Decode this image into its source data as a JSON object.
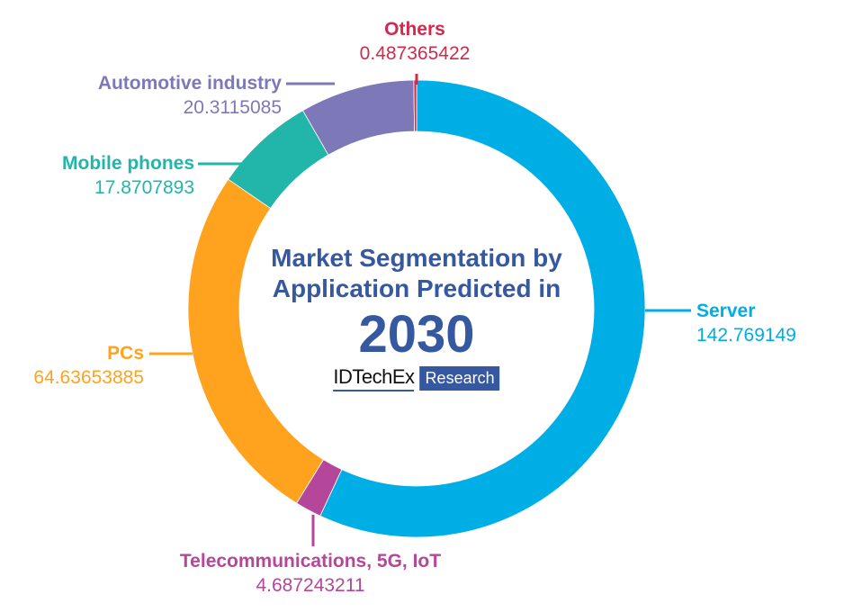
{
  "chart_data": {
    "type": "pie",
    "subtype": "donut",
    "title": "Market Segmentation by Application Predicted in 2030",
    "title_lines": [
      "Market Segmentation by",
      "Application Predicted in"
    ],
    "year": "2030",
    "source_brand": "IDTechEx",
    "source_tag": "Research",
    "start_angle_deg": 0,
    "direction": "clockwise",
    "categories": [
      "Server",
      "Telecommunications, 5G, IoT",
      "PCs",
      "Mobile phones",
      "Automotive industry",
      "Others"
    ],
    "values": [
      142.769149,
      4.687243211,
      64.63653885,
      17.8707893,
      20.3115085,
      0.487365422
    ],
    "value_labels": [
      "142.769149",
      "4.687243211",
      "64.63653885",
      "17.8707893",
      "20.3115085",
      "0.487365422"
    ],
    "colors": [
      "#00aee6",
      "#b5479a",
      "#ffa31f",
      "#22b5a9",
      "#7d78b8",
      "#d12a4b"
    ],
    "legend_position": "callouts"
  },
  "labels": {
    "server": {
      "name": "Server",
      "value": "142.769149",
      "color": "#00aee6"
    },
    "telecom": {
      "name": "Telecommunications, 5G, IoT",
      "value": "4.687243211",
      "color": "#b5479a"
    },
    "pcs": {
      "name": "PCs",
      "value": "64.63653885",
      "color": "#ffa31f"
    },
    "mobile": {
      "name": "Mobile phones",
      "value": "17.8707893",
      "color": "#22b5a9"
    },
    "automotive": {
      "name": "Automotive industry",
      "value": "20.3115085",
      "color": "#7d78b8"
    },
    "others": {
      "name": "Others",
      "value": "0.487365422",
      "color": "#d12a4b"
    }
  },
  "center": {
    "line1": "Market Segmentation by",
    "line2": "Application Predicted in",
    "year": "2030",
    "brand": "IDTechEx",
    "research": "Research"
  }
}
